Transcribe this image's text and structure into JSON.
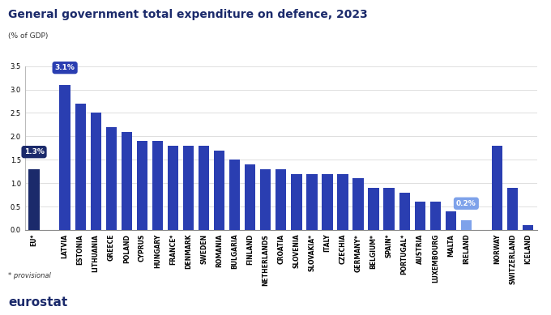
{
  "chart_data": {
    "type": "bar",
    "title": "General government total expenditure on defence, 2023",
    "subtitle": "(% of GDP)",
    "footnote": "* provisional",
    "source": "eurostat",
    "categories": [
      "EU*",
      null,
      "LATVIA",
      "ESTONIA",
      "LITHUANIA",
      "GREECE",
      "POLAND",
      "CYPRUS",
      "HUNGARY",
      "FRANCE*",
      "DENMARK",
      "SWEDEN",
      "ROMANIA",
      "BULGARIA",
      "FINLAND",
      "NETHERLANDS",
      "CROATIA",
      "SLOVENIA",
      "SLOVAKIA*",
      "ITALY",
      "CZECHIA",
      "GERMANY*",
      "BELGIUM*",
      "SPAIN*",
      "PORTUGAL*",
      "AUSTRIA",
      "LUXEMBOURG",
      "MALTA",
      "IRELAND",
      null,
      "NORWAY",
      "SWITZERLAND",
      "ICELAND"
    ],
    "values": [
      1.3,
      null,
      3.1,
      2.7,
      2.5,
      2.2,
      2.1,
      1.9,
      1.9,
      1.8,
      1.8,
      1.8,
      1.7,
      1.5,
      1.4,
      1.3,
      1.3,
      1.2,
      1.2,
      1.2,
      1.2,
      1.1,
      0.9,
      0.9,
      0.8,
      0.6,
      0.6,
      0.4,
      0.2,
      null,
      1.8,
      0.9,
      0.1
    ],
    "value_labels": [
      "1.3%",
      null,
      "3.1%",
      null,
      null,
      null,
      null,
      null,
      null,
      null,
      null,
      null,
      null,
      null,
      null,
      null,
      null,
      null,
      null,
      null,
      null,
      null,
      null,
      null,
      null,
      null,
      null,
      null,
      "0.2%",
      null,
      null,
      null,
      null
    ],
    "colors": [
      "#1b2a6b",
      null,
      "#2a3eb1",
      "#2a3eb1",
      "#2a3eb1",
      "#2a3eb1",
      "#2a3eb1",
      "#2a3eb1",
      "#2a3eb1",
      "#2a3eb1",
      "#2a3eb1",
      "#2a3eb1",
      "#2a3eb1",
      "#2a3eb1",
      "#2a3eb1",
      "#2a3eb1",
      "#2a3eb1",
      "#2a3eb1",
      "#2a3eb1",
      "#2a3eb1",
      "#2a3eb1",
      "#2a3eb1",
      "#2a3eb1",
      "#2a3eb1",
      "#2a3eb1",
      "#2a3eb1",
      "#2a3eb1",
      "#2a3eb1",
      "#7ea2ea",
      null,
      "#2a3eb1",
      "#2a3eb1",
      "#2a3eb1"
    ],
    "ylim": [
      0,
      3.5
    ],
    "yticks": [
      {
        "value": 0,
        "label": "0.0"
      },
      {
        "value": 0.5,
        "label": "0.5"
      },
      {
        "value": 1,
        "label": "1.0"
      },
      {
        "value": 1.5,
        "label": "1.5"
      },
      {
        "value": 2,
        "label": "2.0"
      },
      {
        "value": 2.5,
        "label": "2.5"
      },
      {
        "value": 3,
        "label": "3.0"
      },
      {
        "value": 3.5,
        "label": "3.5"
      }
    ],
    "grid": true
  }
}
